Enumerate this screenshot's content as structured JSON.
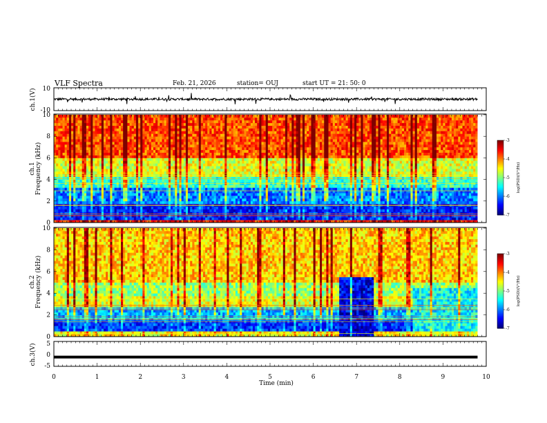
{
  "header": {
    "title": "VLF Spectra",
    "date": "Feb. 21, 2026",
    "station": "station= OUJ",
    "start": "start  UT =  21: 50: 0"
  },
  "chart_data": [
    {
      "type": "line",
      "panel": "ch1-waveform",
      "ylabel": "ch.1(V)",
      "ylim": [
        -10,
        10
      ],
      "yticks": [
        "10",
        "-10"
      ],
      "xlim": [
        0,
        10
      ],
      "baseline": 0,
      "noise_amplitude": 2
    },
    {
      "type": "heatmap",
      "panel": "ch1-spectrogram",
      "ylabel": [
        "ch.1",
        "Frequency  (kHz)"
      ],
      "ylim": [
        0,
        10
      ],
      "yticks": [
        "0",
        "2",
        "4",
        "6",
        "8",
        "10"
      ],
      "xlim": [
        0,
        9.8
      ],
      "colorbar": {
        "label": "log(PSD)(V²/Hz)",
        "range": [
          -7,
          -3
        ],
        "ticks": [
          "-3",
          "-4",
          "-5",
          "-6",
          "-7"
        ]
      },
      "bands": [
        {
          "f": [
            0,
            0.3
          ],
          "value": -3.6
        },
        {
          "f": [
            0.3,
            1.8
          ],
          "value": -6.4
        },
        {
          "f": [
            1.8,
            3.3
          ],
          "value": -6.0
        },
        {
          "f": [
            3.3,
            4.2
          ],
          "value": -5.3
        },
        {
          "f": [
            4.2,
            6.0
          ],
          "value": -4.6
        },
        {
          "f": [
            6.0,
            10
          ],
          "value": -3.8
        }
      ]
    },
    {
      "type": "heatmap",
      "panel": "ch2-spectrogram",
      "ylabel": [
        "ch.2",
        "Frequency  (kHz)"
      ],
      "ylim": [
        0,
        10
      ],
      "yticks": [
        "0",
        "2",
        "4",
        "6",
        "8",
        "10"
      ],
      "xlim": [
        0,
        9.8
      ],
      "colorbar": {
        "label": "log(PSD)(V²/Hz)",
        "range": [
          -7,
          -3
        ],
        "ticks": [
          "-3",
          "-4",
          "-5",
          "-6",
          "-7"
        ]
      },
      "bands": [
        {
          "f": [
            0,
            0.4
          ],
          "value": -4.5
        },
        {
          "f": [
            0.4,
            1.5
          ],
          "value": -6.3
        },
        {
          "f": [
            1.5,
            2.7
          ],
          "value": -5.8
        },
        {
          "f": [
            2.7,
            3.7
          ],
          "value": -4.6
        },
        {
          "f": [
            3.7,
            5.0
          ],
          "value": -4.9
        },
        {
          "f": [
            5.0,
            10
          ],
          "value": -4.3
        }
      ],
      "quiet_intervals": [
        {
          "t": [
            6.6,
            7.4
          ],
          "f": [
            0,
            5.5
          ],
          "value": -6.6
        },
        {
          "t": [
            8.3,
            9.8
          ],
          "f": [
            0.5,
            4.5
          ],
          "value": -5.5
        }
      ]
    },
    {
      "type": "line",
      "panel": "ch3-waveform",
      "ylabel": "ch.3(V)",
      "ylim": [
        -5,
        5
      ],
      "yticks": [
        "5",
        "0",
        "-5"
      ],
      "xlim": [
        0,
        10
      ],
      "xlabel": "Time  (min)",
      "xticks": [
        "0",
        "1",
        "2",
        "3",
        "4",
        "5",
        "6",
        "7",
        "8",
        "9",
        "10"
      ],
      "baseline": -1.3
    }
  ]
}
